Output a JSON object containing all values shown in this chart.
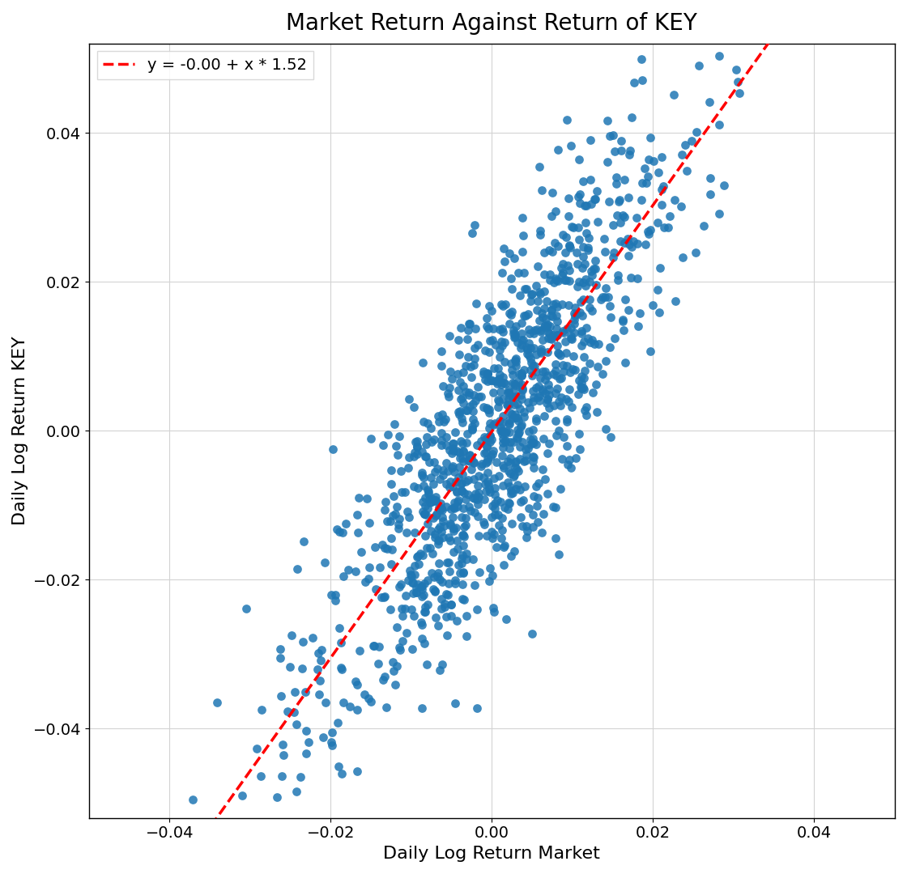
{
  "title": "Market Return Against Return of KEY",
  "xlabel": "Daily Log Return Market",
  "ylabel": "Daily Log Return KEY",
  "legend_label": "y = -0.00 + x * 1.52",
  "intercept": -0.0001,
  "slope": 1.52,
  "scatter_color": "#1f77b4",
  "line_color": "red",
  "line_style": "--",
  "marker_size": 60,
  "alpha": 0.85,
  "xlim": [
    -0.05,
    0.05
  ],
  "ylim": [
    -0.052,
    0.052
  ],
  "xticks": [
    -0.04,
    -0.02,
    0.0,
    0.02,
    0.04
  ],
  "yticks": [
    -0.04,
    -0.02,
    0.0,
    0.02,
    0.04
  ],
  "figsize": [
    11.2,
    10.8
  ],
  "dpi": 100,
  "title_fontsize": 20,
  "label_fontsize": 16,
  "tick_fontsize": 14,
  "legend_fontsize": 14,
  "seed": 12,
  "n_points": 1200
}
